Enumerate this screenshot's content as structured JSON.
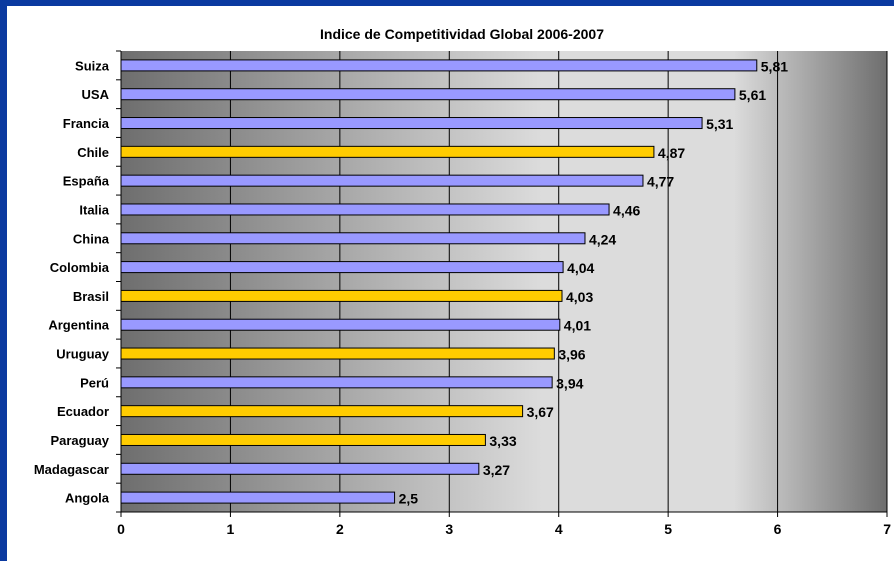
{
  "chart_data": {
    "type": "bar",
    "orientation": "horizontal",
    "title": "Indice de Competitividad Global 2006-2007",
    "xlabel": "",
    "ylabel": "",
    "xlim": [
      0,
      7
    ],
    "x_ticks": [
      "0",
      "1",
      "2",
      "3",
      "4",
      "5",
      "6",
      "7"
    ],
    "grid": true,
    "legend": "none",
    "categories": [
      "Suiza",
      "USA",
      "Francia",
      "Chile",
      "España",
      "Italia",
      "China",
      "Colombia",
      "Brasil",
      "Argentina",
      "Uruguay",
      "Perú",
      "Ecuador",
      "Paraguay",
      "Madagascar",
      "Angola"
    ],
    "values": [
      5.81,
      5.61,
      5.31,
      4.87,
      4.77,
      4.46,
      4.24,
      4.04,
      4.03,
      4.01,
      3.96,
      3.94,
      3.67,
      3.33,
      3.27,
      2.5
    ],
    "value_labels": [
      "5,81",
      "5,61",
      "5,31",
      "4,87",
      "4,77",
      "4,46",
      "4,24",
      "4,04",
      "4,03",
      "4,01",
      "3,96",
      "3,94",
      "3,67",
      "3,33",
      "3,27",
      "2,5"
    ],
    "highlighted": [
      false,
      false,
      false,
      true,
      false,
      false,
      false,
      false,
      true,
      false,
      true,
      false,
      true,
      true,
      false,
      false
    ],
    "colors": {
      "bar": "#9999ff",
      "bar_highlight": "#ffcc00",
      "bar_border": "#000000",
      "background_frame": "#0b3aa0",
      "plot_gradient_dark": "#6e6e6e",
      "plot_gradient_light": "#dcdcdc"
    }
  }
}
